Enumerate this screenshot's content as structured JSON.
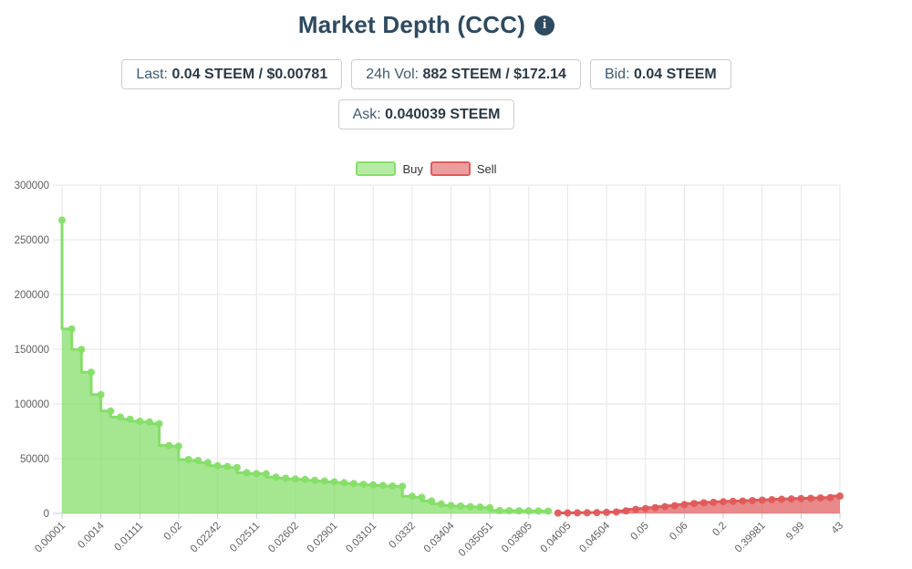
{
  "header": {
    "title": "Market Depth (CCC)",
    "info_icon": "i"
  },
  "stats": {
    "last": {
      "label": "Last:",
      "value": "0.04 STEEM / $0.00781"
    },
    "vol": {
      "label": "24h Vol:",
      "value": "882 STEEM / $172.14"
    },
    "bid": {
      "label": "Bid:",
      "value": "0.04 STEEM"
    },
    "ask": {
      "label": "Ask:",
      "value": "0.040039 STEEM"
    }
  },
  "legend": {
    "buy_label": "Buy",
    "sell_label": "Sell"
  },
  "colors": {
    "buy_line": "#86de69",
    "buy_fill_opacity": 0.74,
    "sell_line": "#e05b5b",
    "sell_fill_opacity": 0.72,
    "grid": "#e6e6e6",
    "axis": "#c6cdd5",
    "axis_text": "#606060",
    "title_navy": "#2e4a60"
  },
  "chart_data": {
    "type": "area",
    "title": "Market Depth (CCC)",
    "step": "vh",
    "grid": true,
    "legend_position": "top-center",
    "ylim": [
      0,
      300000
    ],
    "y_ticks": [
      0,
      50000,
      100000,
      150000,
      200000,
      250000,
      300000
    ],
    "x_tick_labels": [
      "0.00001",
      "0.0014",
      "0.01111",
      "0.02",
      "0.02242",
      "0.02511",
      "0.02602",
      "0.02901",
      "0.03101",
      "0.0332",
      "0.03404",
      "0.035051",
      "0.03805",
      "0.04005",
      "0.04504",
      "0.05",
      "0.06",
      "0.2",
      "0.39981",
      "9.99",
      "43"
    ],
    "ticks_every_n_points": 4,
    "total_points": 81,
    "series": [
      {
        "name": "Buy",
        "color": "#86de69",
        "start_index": 0,
        "values": [
          268000,
          168500,
          149800,
          129000,
          108500,
          93500,
          88000,
          86000,
          84200,
          83500,
          82000,
          62000,
          61500,
          49200,
          48300,
          46400,
          43600,
          42800,
          41900,
          37200,
          36400,
          36200,
          33100,
          32200,
          31500,
          31000,
          30200,
          29500,
          28800,
          28000,
          27300,
          26600,
          26000,
          25500,
          25000,
          24700,
          15600,
          14700,
          11400,
          8600,
          7200,
          6700,
          6100,
          5800,
          5200,
          2600,
          2500,
          2400,
          2300,
          2200,
          2100
        ]
      },
      {
        "name": "Sell",
        "color": "#e05b5b",
        "start_index": 51,
        "values": [
          300,
          400,
          500,
          600,
          700,
          900,
          1300,
          2300,
          3600,
          4400,
          5200,
          6100,
          7000,
          8000,
          9000,
          9700,
          10100,
          10600,
          11000,
          11300,
          11700,
          12100,
          12500,
          12900,
          13200,
          13500,
          13800,
          14100,
          14400,
          15800
        ]
      }
    ]
  }
}
